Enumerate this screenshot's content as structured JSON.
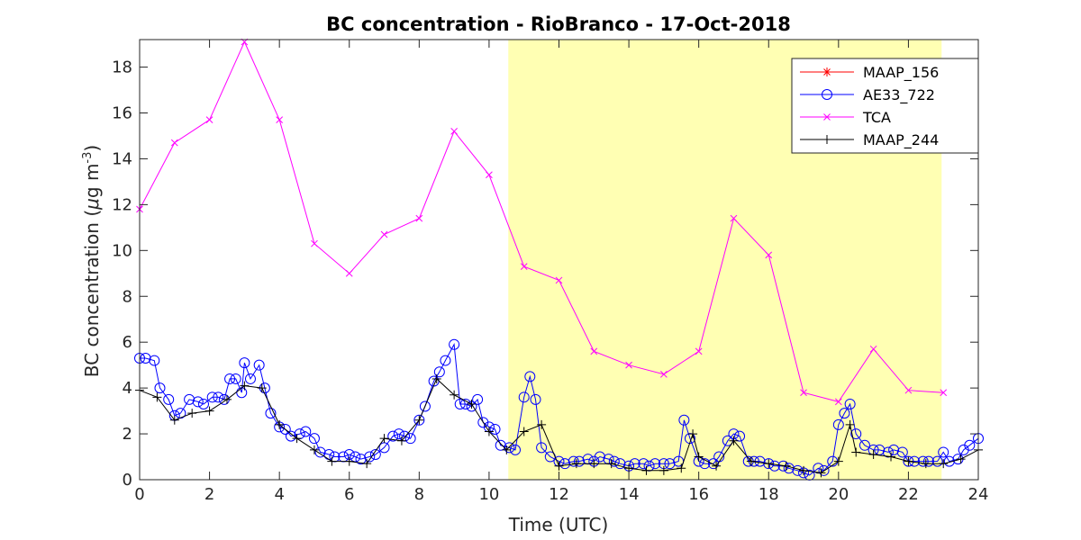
{
  "chart_data": {
    "type": "line",
    "title": "BC concentration  - RioBranco - 17-Oct-2018",
    "xlabel": "Time (UTC)",
    "ylabel_main": "BC concentration (",
    "ylabel_mu": "μ",
    "ylabel_unit": "g m",
    "ylabel_exp": "-3",
    "ylabel_close": ")",
    "xlim": [
      0,
      24
    ],
    "ylim": [
      0,
      19.2
    ],
    "xticks": [
      0,
      2,
      4,
      6,
      8,
      10,
      12,
      14,
      16,
      18,
      20,
      22,
      24
    ],
    "yticks": [
      0,
      2,
      4,
      6,
      8,
      10,
      12,
      14,
      16,
      18
    ],
    "grid": false,
    "legend_position": "top-right",
    "shaded_interval": {
      "x_start": 10.55,
      "x_end": 22.95,
      "color": "#ffffb3"
    },
    "series": [
      {
        "name": "MAAP_156",
        "color": "#ff0000",
        "marker": "star",
        "points": []
      },
      {
        "name": "AE33_722",
        "color": "#0000ff",
        "marker": "circle",
        "points": [
          [
            0.0,
            5.3
          ],
          [
            0.17,
            5.3
          ],
          [
            0.42,
            5.2
          ],
          [
            0.58,
            4.0
          ],
          [
            0.83,
            3.5
          ],
          [
            1.0,
            2.8
          ],
          [
            1.17,
            2.9
          ],
          [
            1.42,
            3.5
          ],
          [
            1.67,
            3.4
          ],
          [
            1.83,
            3.3
          ],
          [
            2.08,
            3.6
          ],
          [
            2.25,
            3.6
          ],
          [
            2.42,
            3.5
          ],
          [
            2.58,
            4.4
          ],
          [
            2.75,
            4.4
          ],
          [
            2.92,
            3.8
          ],
          [
            3.0,
            5.1
          ],
          [
            3.17,
            4.4
          ],
          [
            3.42,
            5.0
          ],
          [
            3.58,
            4.0
          ],
          [
            3.75,
            2.9
          ],
          [
            4.0,
            2.3
          ],
          [
            4.17,
            2.2
          ],
          [
            4.33,
            1.9
          ],
          [
            4.58,
            2.0
          ],
          [
            4.75,
            2.1
          ],
          [
            5.0,
            1.8
          ],
          [
            5.17,
            1.2
          ],
          [
            5.42,
            1.1
          ],
          [
            5.58,
            1.0
          ],
          [
            5.83,
            1.0
          ],
          [
            6.0,
            1.1
          ],
          [
            6.17,
            1.0
          ],
          [
            6.33,
            0.9
          ],
          [
            6.58,
            1.0
          ],
          [
            6.75,
            1.1
          ],
          [
            7.0,
            1.4
          ],
          [
            7.25,
            1.9
          ],
          [
            7.42,
            2.0
          ],
          [
            7.58,
            1.9
          ],
          [
            7.75,
            1.8
          ],
          [
            8.0,
            2.6
          ],
          [
            8.17,
            3.2
          ],
          [
            8.42,
            4.3
          ],
          [
            8.58,
            4.7
          ],
          [
            8.75,
            5.2
          ],
          [
            9.0,
            5.9
          ],
          [
            9.17,
            3.3
          ],
          [
            9.33,
            3.3
          ],
          [
            9.5,
            3.2
          ],
          [
            9.67,
            3.5
          ],
          [
            9.83,
            2.5
          ],
          [
            10.0,
            2.3
          ],
          [
            10.17,
            2.2
          ],
          [
            10.33,
            1.5
          ],
          [
            10.58,
            1.4
          ],
          [
            10.75,
            1.3
          ],
          [
            11.0,
            3.6
          ],
          [
            11.17,
            4.5
          ],
          [
            11.33,
            3.5
          ],
          [
            11.5,
            1.4
          ],
          [
            11.75,
            1.0
          ],
          [
            12.0,
            0.8
          ],
          [
            12.17,
            0.7
          ],
          [
            12.42,
            0.8
          ],
          [
            12.58,
            0.8
          ],
          [
            12.83,
            0.9
          ],
          [
            13.0,
            0.8
          ],
          [
            13.17,
            1.0
          ],
          [
            13.42,
            0.9
          ],
          [
            13.58,
            0.8
          ],
          [
            13.75,
            0.7
          ],
          [
            14.0,
            0.6
          ],
          [
            14.17,
            0.7
          ],
          [
            14.42,
            0.7
          ],
          [
            14.58,
            0.6
          ],
          [
            14.75,
            0.7
          ],
          [
            15.0,
            0.7
          ],
          [
            15.17,
            0.7
          ],
          [
            15.42,
            0.8
          ],
          [
            15.58,
            2.6
          ],
          [
            15.75,
            1.8
          ],
          [
            16.0,
            0.8
          ],
          [
            16.17,
            0.7
          ],
          [
            16.42,
            0.7
          ],
          [
            16.58,
            1.0
          ],
          [
            16.83,
            1.7
          ],
          [
            17.0,
            2.0
          ],
          [
            17.17,
            1.9
          ],
          [
            17.42,
            0.8
          ],
          [
            17.58,
            0.8
          ],
          [
            17.75,
            0.8
          ],
          [
            18.0,
            0.7
          ],
          [
            18.17,
            0.6
          ],
          [
            18.42,
            0.6
          ],
          [
            18.58,
            0.5
          ],
          [
            18.83,
            0.4
          ],
          [
            19.0,
            0.3
          ],
          [
            19.17,
            0.2
          ],
          [
            19.42,
            0.5
          ],
          [
            19.58,
            0.4
          ],
          [
            19.83,
            0.8
          ],
          [
            20.0,
            2.4
          ],
          [
            20.17,
            2.9
          ],
          [
            20.33,
            3.3
          ],
          [
            20.5,
            2.0
          ],
          [
            20.75,
            1.5
          ],
          [
            21.0,
            1.3
          ],
          [
            21.17,
            1.3
          ],
          [
            21.42,
            1.2
          ],
          [
            21.58,
            1.3
          ],
          [
            21.83,
            1.2
          ],
          [
            22.0,
            0.8
          ],
          [
            22.17,
            0.8
          ],
          [
            22.42,
            0.8
          ],
          [
            22.58,
            0.8
          ],
          [
            22.83,
            0.8
          ],
          [
            23.0,
            1.2
          ],
          [
            23.17,
            0.8
          ],
          [
            23.42,
            0.9
          ],
          [
            23.58,
            1.3
          ],
          [
            23.75,
            1.5
          ],
          [
            24.0,
            1.8
          ]
        ]
      },
      {
        "name": "TCA",
        "color": "#ff00ff",
        "marker": "x",
        "points": [
          [
            0.0,
            11.8
          ],
          [
            1.0,
            14.7
          ],
          [
            2.0,
            15.7
          ],
          [
            3.0,
            19.1
          ],
          [
            4.0,
            15.7
          ],
          [
            5.0,
            10.3
          ],
          [
            6.0,
            9.0
          ],
          [
            7.0,
            10.7
          ],
          [
            8.0,
            11.4
          ],
          [
            9.0,
            15.2
          ],
          [
            10.0,
            13.3
          ],
          [
            11.0,
            9.3
          ],
          [
            12.0,
            8.7
          ],
          [
            13.0,
            5.6
          ],
          [
            14.0,
            5.0
          ],
          [
            15.0,
            4.6
          ],
          [
            16.0,
            5.6
          ],
          [
            17.0,
            11.4
          ],
          [
            18.0,
            9.8
          ],
          [
            19.0,
            3.8
          ],
          [
            20.0,
            3.4
          ],
          [
            21.0,
            5.7
          ],
          [
            22.0,
            3.9
          ],
          [
            23.0,
            3.8
          ]
        ]
      },
      {
        "name": "MAAP_244",
        "color": "#000000",
        "marker": "plus",
        "points": [
          [
            0.0,
            3.9
          ],
          [
            0.5,
            3.6
          ],
          [
            1.0,
            2.6
          ],
          [
            1.5,
            2.9
          ],
          [
            2.0,
            3.0
          ],
          [
            2.5,
            3.5
          ],
          [
            3.0,
            4.1
          ],
          [
            3.5,
            4.0
          ],
          [
            4.0,
            2.4
          ],
          [
            4.5,
            1.8
          ],
          [
            5.0,
            1.3
          ],
          [
            5.5,
            0.8
          ],
          [
            6.0,
            0.8
          ],
          [
            6.5,
            0.7
          ],
          [
            7.0,
            1.8
          ],
          [
            7.5,
            1.7
          ],
          [
            8.0,
            2.6
          ],
          [
            8.5,
            4.4
          ],
          [
            9.0,
            3.7
          ],
          [
            9.5,
            3.3
          ],
          [
            10.0,
            2.1
          ],
          [
            10.5,
            1.3
          ],
          [
            11.0,
            2.1
          ],
          [
            11.5,
            2.4
          ],
          [
            12.0,
            0.6
          ],
          [
            12.5,
            0.7
          ],
          [
            13.0,
            0.7
          ],
          [
            13.5,
            0.7
          ],
          [
            14.0,
            0.5
          ],
          [
            14.5,
            0.4
          ],
          [
            15.0,
            0.4
          ],
          [
            15.5,
            0.5
          ],
          [
            15.83,
            2.0
          ],
          [
            16.0,
            1.0
          ],
          [
            16.5,
            0.6
          ],
          [
            17.0,
            1.7
          ],
          [
            17.5,
            0.8
          ],
          [
            18.0,
            0.7
          ],
          [
            18.5,
            0.6
          ],
          [
            19.0,
            0.4
          ],
          [
            19.5,
            0.3
          ],
          [
            20.0,
            0.8
          ],
          [
            20.33,
            2.4
          ],
          [
            20.5,
            1.2
          ],
          [
            21.0,
            1.1
          ],
          [
            21.5,
            1.0
          ],
          [
            22.0,
            0.8
          ],
          [
            22.5,
            0.7
          ],
          [
            23.0,
            0.7
          ],
          [
            23.5,
            0.9
          ],
          [
            24.0,
            1.3
          ]
        ]
      }
    ]
  }
}
